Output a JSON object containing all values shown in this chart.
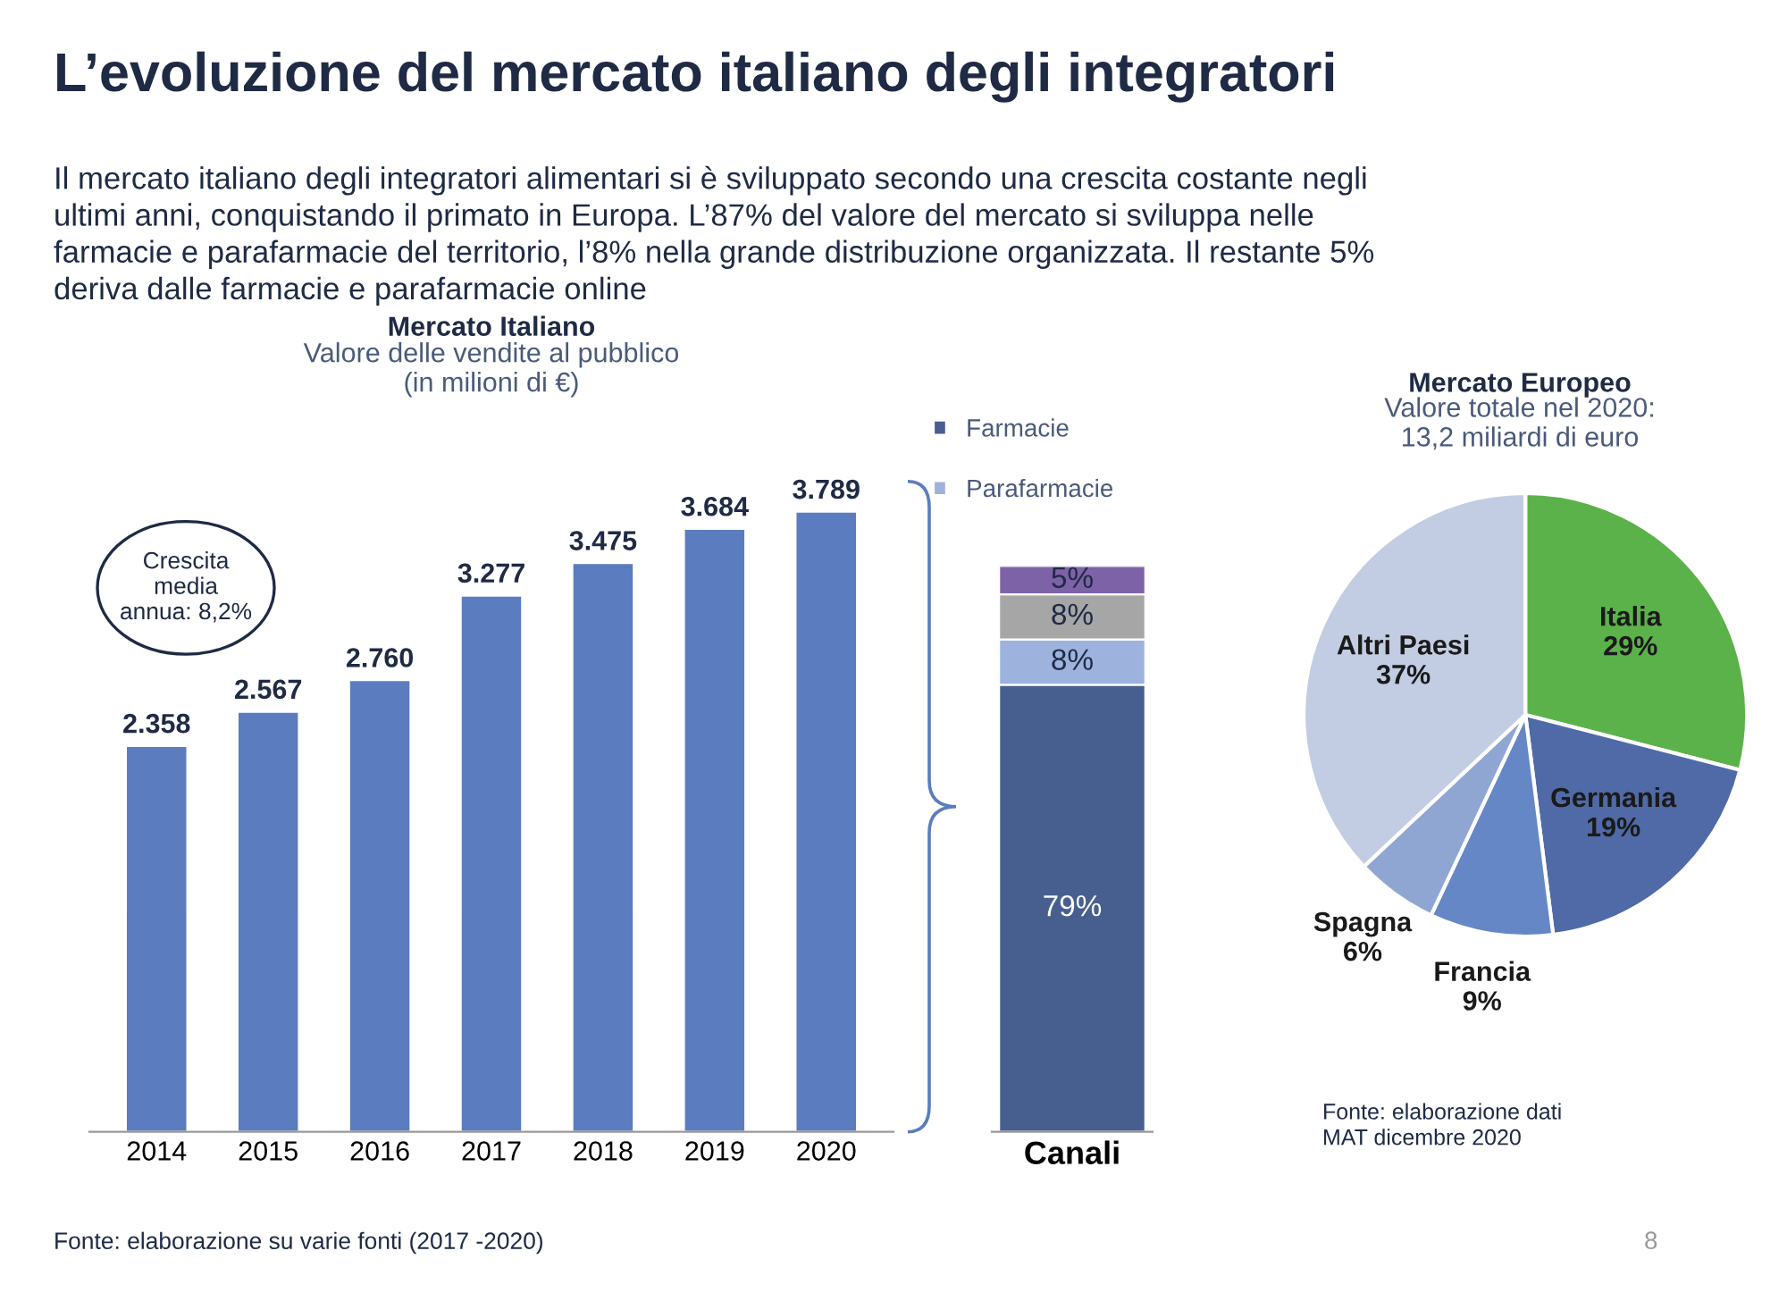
{
  "chart_data": [
    {
      "type": "bar",
      "title": "Mercato Italiano",
      "subtitle": "Valore delle vendite al pubblico\n(in milioni di €)",
      "categories": [
        "2014",
        "2015",
        "2016",
        "2017",
        "2018",
        "2019",
        "2020"
      ],
      "values": [
        2358,
        2567,
        2760,
        3277,
        3475,
        3684,
        3789
      ],
      "value_labels": [
        "2.358",
        "2.567",
        "2.760",
        "3.277",
        "3.475",
        "3.684",
        "3.789"
      ],
      "color": "#5b7dbf",
      "grid": false,
      "legend": false,
      "annotations": [
        "L’evoluzione del mercato italiano degli integratori",
        "Il mercato italiano degli integratori alimentari si è sviluppato secondo una crescita costante negli\nultimi anni, conquistando il primato in Europa. L’87% del valore del mercato si sviluppa nelle\nfarmacie e parafarmacie del territorio, l’8% nella grande distribuzione organizzata. Il restante 5%\nderiva dalle farmacie e parafarmacie online",
        "Crescita\nmedia\nannua: 8,2%",
        "Fonte: elaborazione su varie fonti (2017 -2020)"
      ]
    },
    {
      "type": "bar",
      "stacked": true,
      "categories": [
        "Canali"
      ],
      "legend": "top",
      "grid": false,
      "series": [
        {
          "name": "Farmacie",
          "color": "#465f8f",
          "values": [
            79
          ],
          "value_labels": [
            "79%"
          ]
        },
        {
          "name": "Parafarmacie",
          "color": "#9db3de",
          "values": [
            8
          ],
          "value_labels": [
            "8%"
          ]
        },
        {
          "color": "#a6a6a6",
          "values": [
            8
          ],
          "value_labels": [
            "8%"
          ]
        },
        {
          "color": "#7e62a8",
          "values": [
            5
          ],
          "value_labels": [
            "5%"
          ]
        }
      ]
    },
    {
      "type": "pie",
      "title": "Mercato Europeo",
      "subtitle": "Valore totale nel 2020:\n13,2 miliardi di euro",
      "categories": [
        "Italia",
        "Germania",
        "Francia",
        "Spagna",
        "Altri Paesi"
      ],
      "values": [
        29,
        19,
        9,
        6,
        37
      ],
      "value_labels": [
        "29%",
        "19%",
        "9%",
        "6%",
        "37%"
      ],
      "colors": [
        "#5cb24a",
        "#4f6aa6",
        "#6687c6",
        "#90a6d2",
        "#c2cce2"
      ],
      "annotations": [
        "Fonte: elaborazione dati\nMAT dicembre 2020",
        "8"
      ]
    }
  ]
}
